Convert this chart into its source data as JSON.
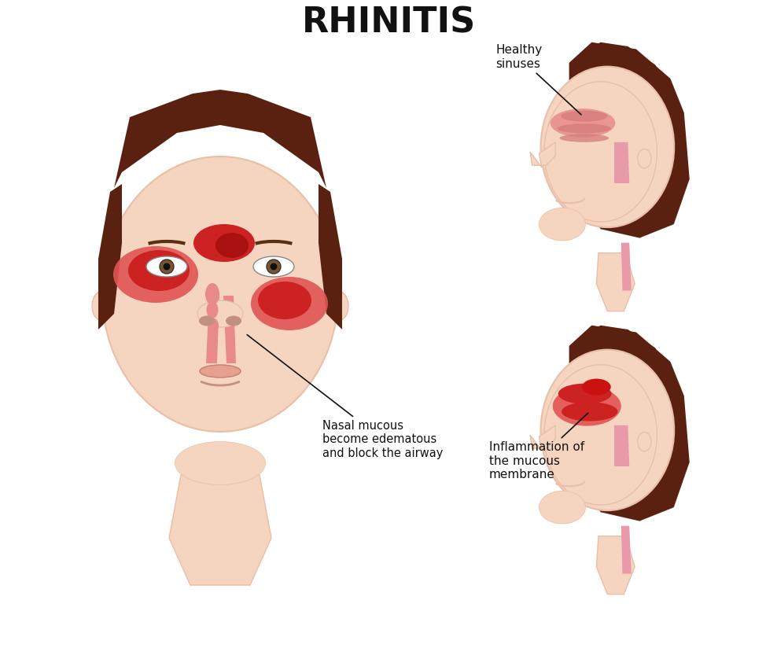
{
  "title": "RHINITIS",
  "title_fontsize": 32,
  "title_fontweight": "bold",
  "bg_color": "#ffffff",
  "skin_color": "#f5d5c0",
  "skin_dark": "#e8bfa8",
  "hair_color": "#5a2010",
  "nose_pink": "#e88a8a",
  "nose_red": "#cc2222",
  "nose_light_red": "#e05555",
  "throat_pink": "#e899aa",
  "label1_text": "Nasal mucous\nbecome edematous\nand block the airway",
  "label2_text": "Healthy\nsinuses",
  "label3_text": "Inflammation of\nthe mucous\nmembrane"
}
